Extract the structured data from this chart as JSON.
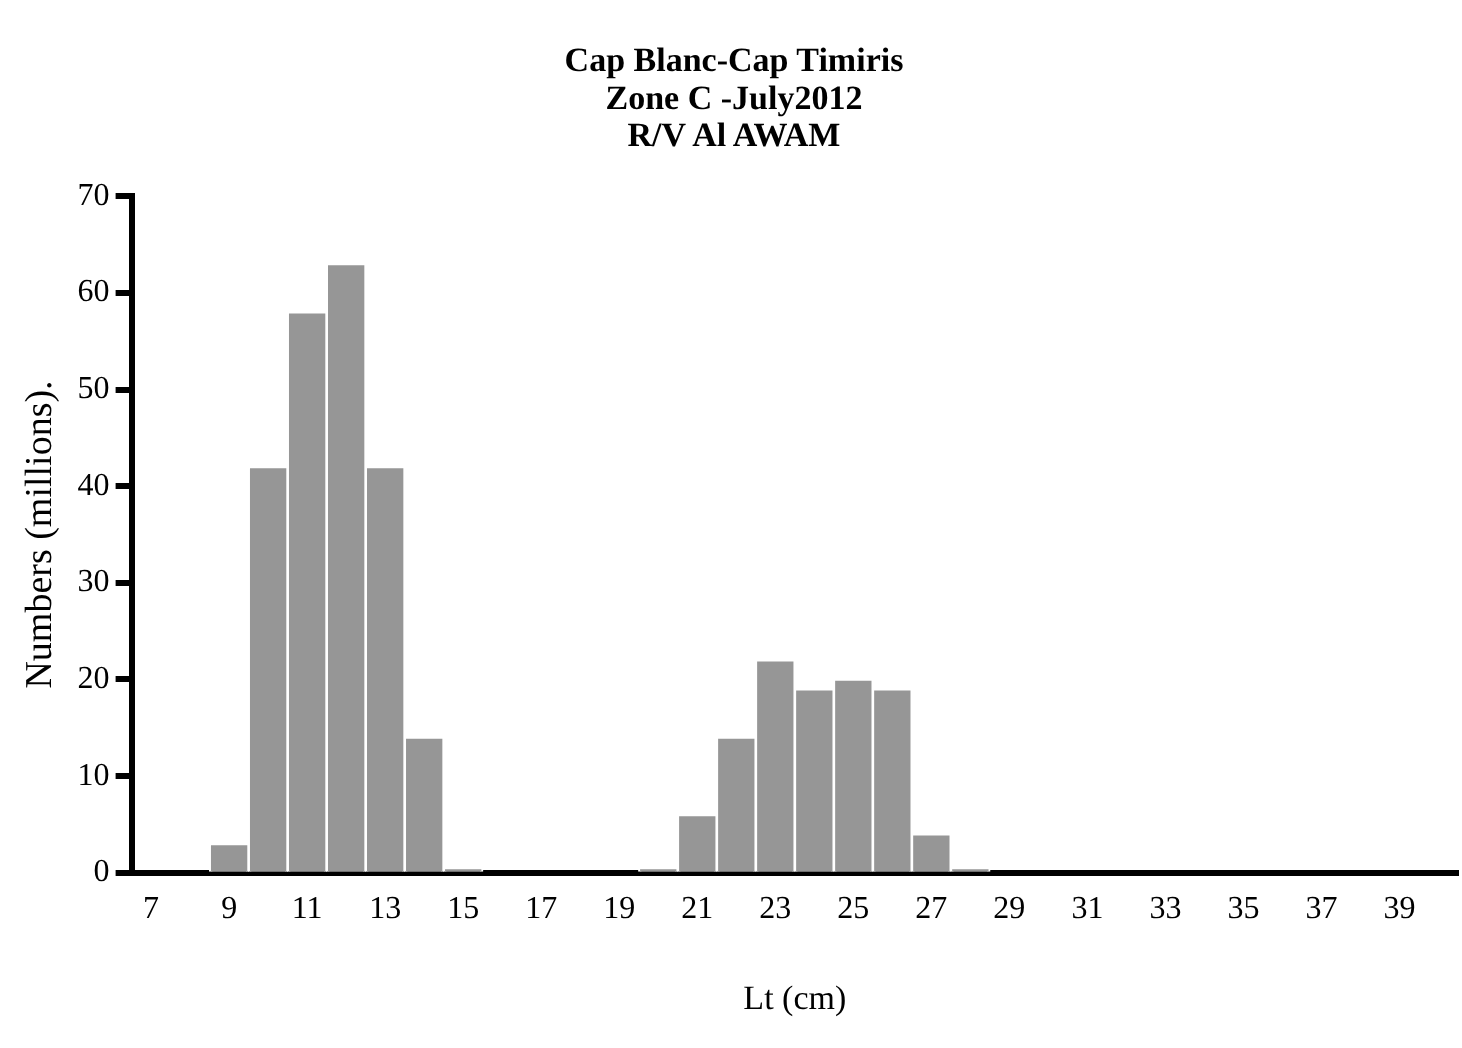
{
  "chart_data": {
    "type": "histogram",
    "title": [
      "Cap Blanc-Cap Timiris",
      "Zone C -July2012",
      "R/V Al AWAM"
    ],
    "xlabel": "Lt (cm)",
    "ylabel": "Numbers (millions).",
    "categories": [
      "7",
      null,
      "9",
      null,
      "11",
      null,
      "13",
      null,
      "15",
      null,
      "17",
      null,
      "19",
      null,
      "21",
      null,
      "23",
      null,
      "25",
      null,
      "27",
      null,
      "29",
      null,
      "31",
      null,
      "33",
      null,
      "35",
      null,
      "37",
      null,
      "39",
      null
    ],
    "values": [
      0,
      0,
      3,
      42,
      58,
      63,
      42,
      14,
      0.5,
      0,
      0,
      0,
      0,
      0.5,
      6,
      14,
      22,
      19,
      20,
      19,
      4,
      0.5,
      0,
      0,
      0,
      0,
      0,
      0,
      0,
      0,
      0,
      0,
      0,
      0
    ],
    "color": "#969696",
    "ylim": [
      0,
      70
    ],
    "yticks": [
      0,
      10,
      20,
      30,
      40,
      50,
      60,
      70
    ],
    "grid": false,
    "legend": false
  }
}
